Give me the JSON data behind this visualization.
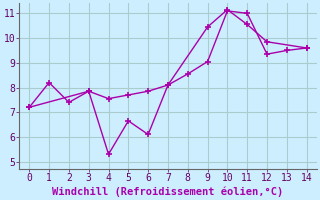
{
  "line1_x": [
    0,
    1,
    2,
    3,
    4,
    5,
    6,
    7,
    8,
    9,
    10,
    11,
    12,
    13,
    14
  ],
  "line1_y": [
    7.2,
    8.2,
    7.4,
    7.85,
    7.55,
    7.7,
    7.85,
    8.1,
    8.55,
    9.05,
    11.1,
    11.0,
    9.35,
    9.5,
    9.6
  ],
  "line2_x": [
    0,
    3,
    4,
    5,
    6,
    7,
    9,
    10,
    11,
    12,
    14
  ],
  "line2_y": [
    7.2,
    7.85,
    5.3,
    6.65,
    6.1,
    8.1,
    10.45,
    11.15,
    10.55,
    9.85,
    9.6
  ],
  "line_color": "#aa00aa",
  "background_color": "#cceeff",
  "grid_color": "#aacccc",
  "xlabel": "Windchill (Refroidissement éolien,°C)",
  "xlim_min": -0.5,
  "xlim_max": 14.5,
  "ylim_min": 4.7,
  "ylim_max": 11.4,
  "xticks": [
    0,
    1,
    2,
    3,
    4,
    5,
    6,
    7,
    8,
    9,
    10,
    11,
    12,
    13,
    14
  ],
  "yticks": [
    5,
    6,
    7,
    8,
    9,
    10,
    11
  ],
  "marker": "+",
  "markersize": 5,
  "linewidth": 1.0,
  "xlabel_fontsize": 7.5,
  "tick_fontsize": 7
}
